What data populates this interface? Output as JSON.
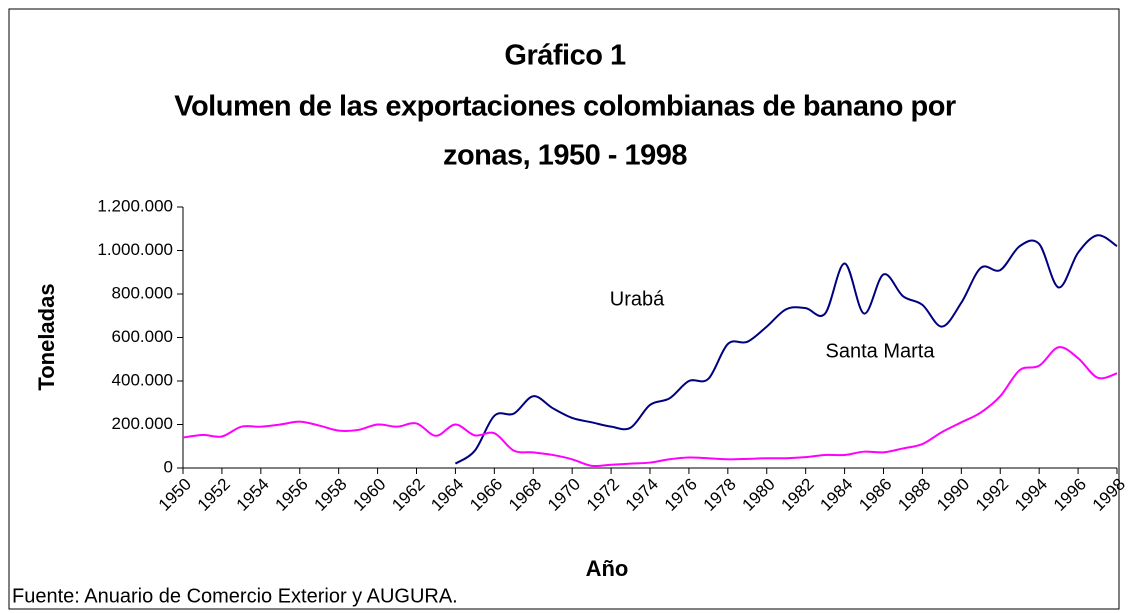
{
  "chart_data": {
    "type": "line",
    "title": "Gráfico 1",
    "subtitle": [
      "Volumen de las exportaciones colombianas de banano por",
      "zonas, 1950 - 1998"
    ],
    "x_label": "Año",
    "y_label": "Toneladas",
    "source": "Fuente: Anuario de Comercio Exterior y AUGURA.",
    "x": [
      1950,
      1951,
      1952,
      1953,
      1954,
      1955,
      1956,
      1957,
      1958,
      1959,
      1960,
      1961,
      1962,
      1963,
      1964,
      1965,
      1966,
      1967,
      1968,
      1969,
      1970,
      1971,
      1972,
      1973,
      1974,
      1975,
      1976,
      1977,
      1978,
      1979,
      1980,
      1981,
      1982,
      1983,
      1984,
      1985,
      1986,
      1987,
      1988,
      1989,
      1990,
      1991,
      1992,
      1993,
      1994,
      1995,
      1996,
      1997,
      1998
    ],
    "series": [
      {
        "name": "Urabá",
        "color": "#000080",
        "values": [
          null,
          null,
          null,
          null,
          null,
          null,
          null,
          null,
          null,
          null,
          null,
          null,
          null,
          null,
          20000,
          80000,
          240000,
          250000,
          330000,
          275000,
          230000,
          210000,
          190000,
          185000,
          290000,
          320000,
          400000,
          410000,
          570000,
          580000,
          650000,
          730000,
          735000,
          710000,
          940000,
          710000,
          890000,
          790000,
          750000,
          650000,
          760000,
          920000,
          910000,
          1020000,
          1030000,
          830000,
          990000,
          1070000,
          1020000
        ]
      },
      {
        "name": "Santa Marta",
        "color": "#ff00ff",
        "values": [
          140000,
          152000,
          145000,
          190000,
          190000,
          200000,
          213000,
          195000,
          172000,
          175000,
          200000,
          190000,
          205000,
          148000,
          200000,
          150000,
          160000,
          80000,
          72000,
          60000,
          40000,
          10000,
          15000,
          20000,
          25000,
          40000,
          48000,
          45000,
          40000,
          42000,
          45000,
          45000,
          50000,
          60000,
          60000,
          75000,
          72000,
          90000,
          110000,
          165000,
          210000,
          255000,
          330000,
          450000,
          470000,
          555000,
          505000,
          415000,
          435000
        ]
      }
    ],
    "xlim": [
      1950,
      1998
    ],
    "xticks": [
      1950,
      1952,
      1954,
      1956,
      1958,
      1960,
      1962,
      1964,
      1966,
      1968,
      1970,
      1972,
      1974,
      1976,
      1978,
      1980,
      1982,
      1984,
      1986,
      1988,
      1990,
      1992,
      1994,
      1996,
      1998
    ],
    "ylim": [
      0,
      1200000
    ],
    "yticks": [
      0,
      {
        "value": 200000,
        "label": "200.000"
      },
      {
        "value": 400000,
        "label": "400.000"
      },
      {
        "value": 600000,
        "label": "600.000"
      },
      {
        "value": 800000,
        "label": "800.000"
      },
      {
        "value": 1000000,
        "label": "1.000.000"
      },
      {
        "value": 1200000,
        "label": "1.200.000"
      }
    ],
    "grid": false
  }
}
